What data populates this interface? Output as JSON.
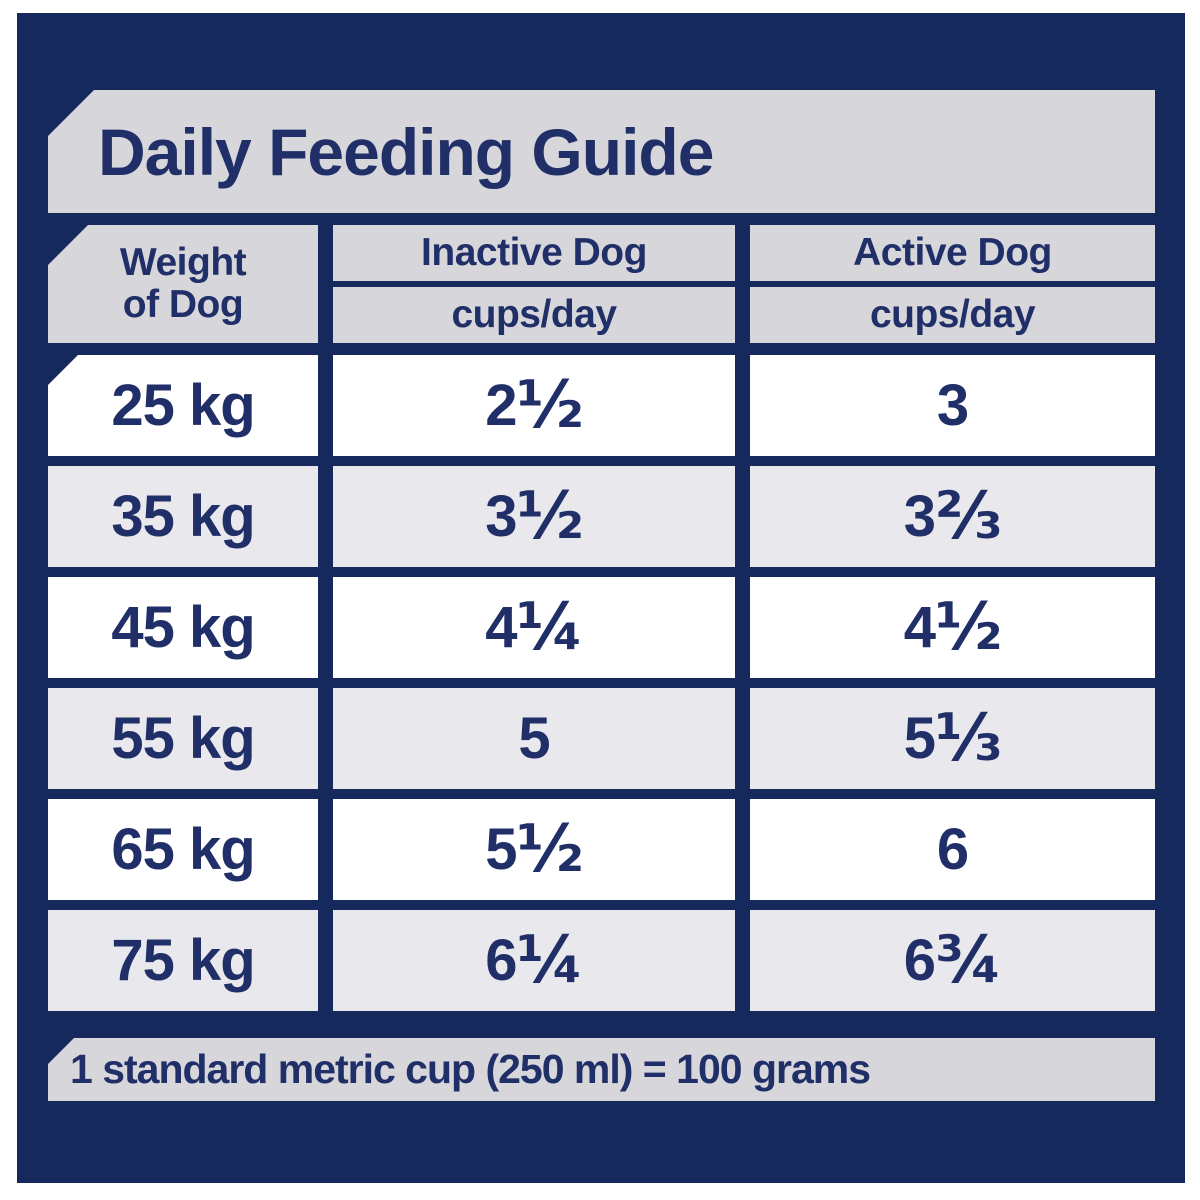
{
  "title": "Daily Feeding Guide",
  "colors": {
    "panel_navy": "#15295c",
    "banner_gray": "#d7d7db",
    "row_gray": "#e9e9ed",
    "row_white": "#ffffff",
    "text_navy": "#212f68"
  },
  "header": {
    "weight_col_line1": "Weight",
    "weight_col_line2": "of Dog",
    "inactive_label": "Inactive Dog",
    "inactive_unit": "cups/day",
    "active_label": "Active Dog",
    "active_unit": "cups/day"
  },
  "footnote": "1 standard metric cup (250 ml) = 100 grams",
  "chart_data": {
    "type": "table",
    "title": "Daily Feeding Guide",
    "columns": [
      "Weight of Dog",
      "Inactive Dog cups/day",
      "Active Dog cups/day"
    ],
    "rows": [
      [
        "25 kg",
        "2 ½",
        "3"
      ],
      [
        "35 kg",
        "3 ½",
        "3 ⅔"
      ],
      [
        "45 kg",
        "4 ¼",
        "4 ½"
      ],
      [
        "55 kg",
        "5",
        "5 ⅓"
      ],
      [
        "65 kg",
        "5 ½",
        "6"
      ],
      [
        "75 kg",
        "6 ¼",
        "6 ¾"
      ]
    ],
    "values_numeric": {
      "weights_kg": [
        25,
        35,
        45,
        55,
        65,
        75
      ],
      "inactive_cups_per_day": [
        2.5,
        3.5,
        4.25,
        5,
        5.5,
        6.25
      ],
      "active_cups_per_day": [
        3,
        3.667,
        4.5,
        5.333,
        6,
        6.75
      ]
    },
    "footnote": "1 standard metric cup (250 ml) = 100 grams"
  }
}
